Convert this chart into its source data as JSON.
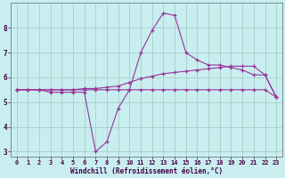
{
  "background_color": "#c8eef0",
  "grid_color": "#a0c8c0",
  "line_color": "#993399",
  "xlabel": "Windchill (Refroidissement éolien,°C)",
  "xlim": [
    -0.5,
    23.5
  ],
  "ylim": [
    2.8,
    9.0
  ],
  "yticks": [
    3,
    4,
    5,
    6,
    7,
    8
  ],
  "xticks": [
    0,
    1,
    2,
    3,
    4,
    5,
    6,
    7,
    8,
    9,
    10,
    11,
    12,
    13,
    14,
    15,
    16,
    17,
    18,
    19,
    20,
    21,
    22,
    23
  ],
  "line1_x": [
    0,
    1,
    2,
    3,
    4,
    5,
    6,
    7,
    8,
    9,
    10,
    11,
    12,
    13,
    14,
    15,
    16,
    17,
    18,
    19,
    20,
    21,
    22,
    23
  ],
  "line1_y": [
    5.5,
    5.5,
    5.5,
    5.4,
    5.4,
    5.4,
    5.4,
    3.0,
    3.4,
    4.75,
    5.5,
    7.0,
    7.9,
    8.6,
    8.5,
    7.0,
    6.7,
    6.5,
    6.5,
    6.4,
    6.3,
    6.1,
    6.1,
    5.2
  ],
  "line2_x": [
    0,
    1,
    2,
    3,
    4,
    5,
    6,
    7,
    8,
    9,
    10,
    11,
    12,
    13,
    14,
    15,
    16,
    17,
    18,
    19,
    20,
    21,
    22,
    23
  ],
  "line2_y": [
    5.5,
    5.5,
    5.5,
    5.5,
    5.5,
    5.5,
    5.5,
    5.5,
    5.5,
    5.5,
    5.5,
    5.5,
    5.5,
    5.5,
    5.5,
    5.5,
    5.5,
    5.5,
    5.5,
    5.5,
    5.5,
    5.5,
    5.5,
    5.2
  ],
  "line3_x": [
    0,
    1,
    2,
    3,
    4,
    5,
    6,
    7,
    8,
    9,
    10,
    11,
    12,
    13,
    14,
    15,
    16,
    17,
    18,
    19,
    20,
    21,
    22,
    23
  ],
  "line3_y": [
    5.5,
    5.5,
    5.5,
    5.5,
    5.5,
    5.5,
    5.55,
    5.55,
    5.6,
    5.65,
    5.8,
    5.95,
    6.05,
    6.15,
    6.2,
    6.25,
    6.3,
    6.35,
    6.4,
    6.45,
    6.45,
    6.45,
    6.1,
    5.2
  ]
}
